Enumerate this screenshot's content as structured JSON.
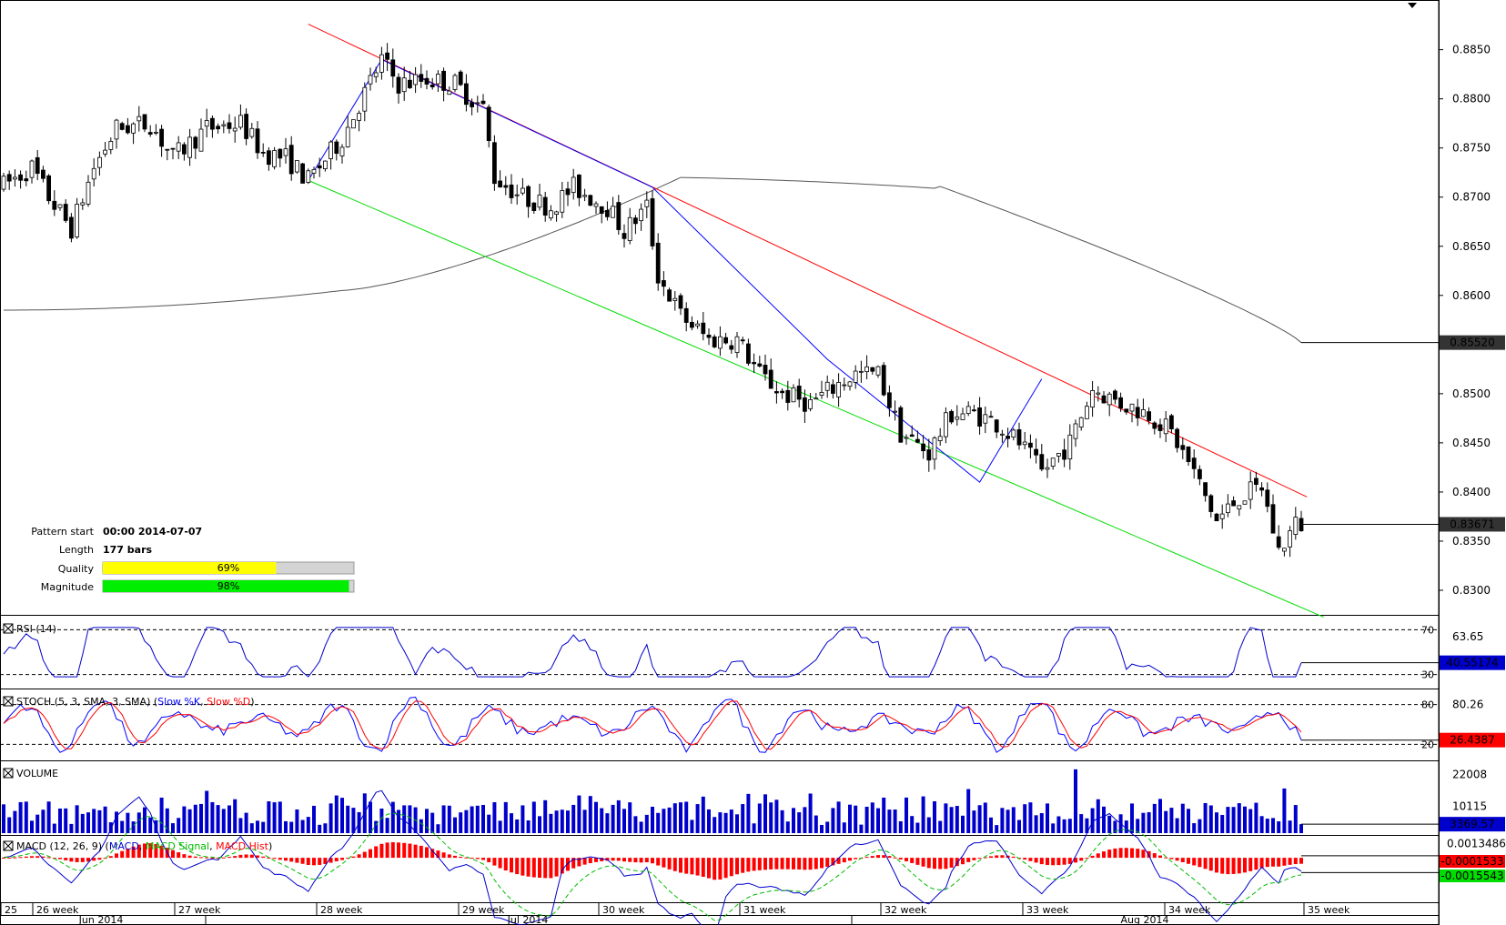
{
  "colors": {
    "upper_line": "#ff0000",
    "lower_line": "#00dd00",
    "zigzag": "#0000ff",
    "sma": "#555555",
    "rsi": "#0000cc",
    "stoch_k": "#0000ff",
    "stoch_d": "#ff0000",
    "volume": "#0000cc",
    "macd": "#0000cc",
    "macd_signal": "#00bb00",
    "macd_hist": "#ff0000",
    "quality_bar": "#ffff00",
    "magnitude_bar": "#00ee00"
  },
  "pattern_info": {
    "start_label": "Pattern start",
    "start_value": "00:00 2014-07-07",
    "length_label": "Length",
    "length_value": "177 bars",
    "quality_label": "Quality",
    "quality_text": "69%",
    "quality_value": 0.69,
    "magnitude_label": "Magnitude",
    "magnitude_text": "98%",
    "magnitude_value": 0.98
  },
  "chart_data": [
    {
      "type": "candlestick",
      "y_ticks": [
        "0.8850",
        "0.8800",
        "0.8750",
        "0.8700",
        "0.8650",
        "0.8600",
        "0.8550",
        "0.8500",
        "0.8450",
        "0.8400",
        "0.8350",
        "0.8300"
      ],
      "ylim": [
        0.8275,
        0.8895
      ],
      "price_badges": [
        "0.85520",
        "0.83671"
      ],
      "sma_last": 0.8552,
      "close_last": 0.83671,
      "channel_upper": [
        [
          0,
          0.8876
        ],
        [
          177,
          0.8395
        ]
      ],
      "channel_lower": [
        [
          0,
          0.8717
        ],
        [
          177,
          0.828
        ]
      ],
      "zigzag": [
        [
          0,
          0.8717
        ],
        [
          13,
          0.884
        ],
        [
          61,
          0.871
        ],
        [
          92,
          0.8535
        ],
        [
          119,
          0.841
        ],
        [
          130,
          0.8515
        ]
      ],
      "x_labels_week": [
        "25",
        "26 week",
        "27 week",
        "28 week",
        "29 week",
        "30 week",
        "31 week",
        "32 week",
        "33 week",
        "34 week",
        "35 week"
      ],
      "x_labels_month": [
        "Jun 2014",
        "Jul 2014",
        "Aug 2014"
      ]
    },
    {
      "type": "line",
      "name": "RSI (14)",
      "levels": [
        "70",
        "30"
      ],
      "tick": "63.65",
      "last_value": "40.55174",
      "ylim": [
        20,
        80
      ]
    },
    {
      "type": "line",
      "name": "STOCH (5, 3, SMA, 3, SMA)",
      "legend": [
        "Slow %K",
        "Slow %D"
      ],
      "levels": [
        "80",
        "20"
      ],
      "tick": "80.26",
      "last_value": "26.4387",
      "ylim": [
        0,
        100
      ]
    },
    {
      "type": "bar",
      "name": "VOLUME",
      "ticks": [
        "22008",
        "10115"
      ],
      "last_value": "3369.57",
      "ylim": [
        0,
        26000
      ]
    },
    {
      "type": "line",
      "name": "MACD (12, 26, 9)",
      "legend": [
        "MACD",
        "MACD Signal",
        "MACD Hist"
      ],
      "tick": "0.0013486",
      "last_values": [
        "-0.0001533",
        "-0.0015543"
      ],
      "ylim": [
        -0.004,
        0.0018
      ]
    }
  ]
}
